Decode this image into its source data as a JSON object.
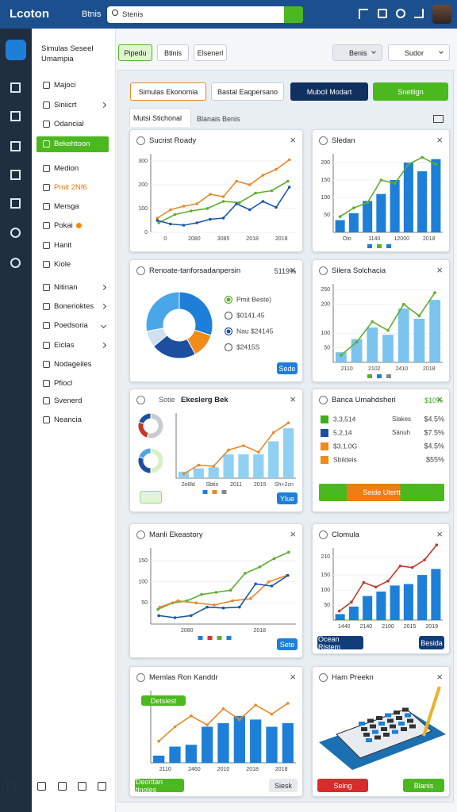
{
  "topbar": {
    "logo": "Lcoton",
    "nav": "Btnis",
    "search": "Stenis"
  },
  "header": {
    "title_line1": "Simulas Seseel",
    "title_line2": "Umampia",
    "buttons": [
      "Pipedu",
      "Btinis",
      "Elsenerl"
    ],
    "dropdowns": [
      "Benis",
      "Sudor"
    ]
  },
  "sidebar": [
    {
      "label": "Majoci"
    },
    {
      "label": "Siniicrt",
      "chevron": "right"
    },
    {
      "label": "Odancial"
    },
    {
      "label": "Bekehtoon",
      "active": true
    },
    {
      "label": "Medion"
    },
    {
      "label": "Pmit 2Nf6",
      "color": "#e07a10"
    },
    {
      "label": "Mersga"
    },
    {
      "label": "Pokai",
      "badge_color": "#f08c00"
    },
    {
      "label": "Hanit"
    },
    {
      "label": "Kiole"
    },
    {
      "label": "Nitinan",
      "chevron": "right"
    },
    {
      "label": "Bonerioktes",
      "chevron": "right"
    },
    {
      "label": "Poedsoria",
      "chevron": "down"
    },
    {
      "label": "Eiclas",
      "chevron": "right"
    },
    {
      "label": "Nodageiles"
    },
    {
      "label": "Pfiocl"
    },
    {
      "label": "Svenerd"
    },
    {
      "label": "Neancia"
    }
  ],
  "tabs": [
    "Simulas Ekonomia",
    "Bastal Eaqpersano",
    "Mubcil Modart",
    "Snetlign"
  ],
  "subtabs": [
    "Mutsi Stichonal",
    "Blanais Benis"
  ],
  "cards": [
    {
      "title": "Sucrist Roady",
      "chart": {
        "yticks": [
          0,
          100,
          200,
          300
        ],
        "ylim": [
          0,
          330
        ],
        "xlabels": [
          "0",
          "2080",
          "3085",
          "2018",
          "2018"
        ],
        "series": [
          {
            "type": "line",
            "color": "#e8892a",
            "values": [
              60,
              95,
              110,
              120,
              160,
              150,
              215,
              200,
              240,
              265,
              305
            ]
          },
          {
            "type": "line",
            "color": "#5fae2e",
            "values": [
              40,
              75,
              90,
              100,
              130,
              125,
              165,
              175,
              215
            ]
          },
          {
            "type": "line",
            "color": "#1c56a6",
            "values": [
              50,
              35,
              30,
              40,
              55,
              60,
              120,
              95,
              130,
              105,
              190
            ]
          }
        ]
      }
    },
    {
      "title": "Sledan",
      "chart": {
        "yticks": [
          50,
          100,
          150,
          200
        ],
        "ylim": [
          0,
          225
        ],
        "xlabels": [
          "Olo",
          "1140",
          "12000",
          "2018"
        ],
        "legend_colors": [
          "#1d7fd8",
          "#5fae2e",
          "#1d7fd8"
        ],
        "series": [
          {
            "type": "bar",
            "color": "#1d7fd8",
            "values": [
              35,
              55,
              90,
              110,
              150,
              200,
              175,
              210
            ]
          },
          {
            "type": "line",
            "color": "#5fae2e",
            "values": [
              45,
              70,
              85,
              150,
              140,
              195,
              215,
              195
            ]
          }
        ]
      }
    },
    {
      "title": "Renoate-tanforsadanpersin",
      "badge": "5119%",
      "donut": {
        "values": [
          30,
          12,
          22,
          8,
          28
        ],
        "colors": [
          "#1d7fd8",
          "#f08c1a",
          "#1c4fa0",
          "#cfe0f0",
          "#49a6e8"
        ]
      },
      "legend": [
        {
          "text": "Pmit Beste)",
          "color": "#5fae2e",
          "checked": true
        },
        {
          "text": "$0141.45",
          "color": "#3f9f1a"
        },
        {
          "text": "Nau $24145",
          "color": "#1c4fa0",
          "checked": true
        },
        {
          "text": "$2415S",
          "color": "#e07a10"
        }
      ],
      "button": "Sede"
    },
    {
      "title": "Silera Solchacia",
      "chart": {
        "yticks": [
          50,
          100,
          200,
          250
        ],
        "ylim": [
          0,
          270
        ],
        "xlabels": [
          "2110",
          "2102",
          "2410",
          "2018"
        ],
        "legend_colors": [
          "#5fae2e",
          "#1d7fd8",
          "#888888"
        ],
        "series": [
          {
            "type": "bar",
            "color": "#7cc3ee",
            "values": [
              35,
              80,
              120,
              95,
              185,
              150,
              215
            ]
          },
          {
            "type": "line",
            "color": "#5fae2e",
            "values": [
              25,
              70,
              140,
              110,
              200,
              160,
              240
            ]
          }
        ]
      }
    },
    {
      "title": "Ekeslerg Bek",
      "prefix": "Sotie",
      "button": "Ylue",
      "mini_donuts": [
        {
          "values": [
            55,
            25,
            20
          ],
          "colors": [
            "#c9ccd2",
            "#c0392b",
            "#1c4fa0"
          ]
        },
        {
          "values": [
            50,
            30,
            20
          ],
          "colors": [
            "#d8f0c8",
            "#1c4fa0",
            "#49a6e8"
          ]
        }
      ],
      "chart": {
        "yticks": [],
        "ylim": [
          0,
          300
        ],
        "xlabels": [
          "2e8ld",
          "Sbtis",
          "2011",
          "2015",
          "Sh+2cn"
        ],
        "legend_colors": [
          "#1d7fd8",
          "#e8892a",
          "#888888"
        ],
        "series": [
          {
            "type": "bar",
            "color": "#8fd0f3",
            "values": [
              30,
              45,
              50,
              110,
              110,
              110,
              170,
              230
            ]
          },
          {
            "type": "line",
            "color": "#e8892a",
            "values": [
              20,
              60,
              55,
              130,
              150,
              120,
              210,
              255
            ]
          }
        ]
      }
    },
    {
      "title": "Banca Umahdsheri",
      "badge": "$10%",
      "button": "Seide Utertt",
      "rows": [
        {
          "value": "3,3,514",
          "label": "Slakes",
          "pct": "$4.5%",
          "color": "#3fae1a"
        },
        {
          "value": "5,2,14",
          "label": "Sänuh",
          "pct": "$7.5%",
          "color": "#1c4fa0"
        },
        {
          "value": "$3.1.0G",
          "label": "",
          "pct": "$4.5%",
          "color": "#f08c1a"
        },
        {
          "value": "Sbildeis",
          "label": "",
          "pct": "$55%",
          "color": "#f08c1a"
        }
      ]
    },
    {
      "title": "Manli Ekeastory",
      "button": "Sete",
      "chart": {
        "yticks": [
          50,
          100,
          150
        ],
        "ylim": [
          0,
          180
        ],
        "xlabels": [
          "2080",
          "2018"
        ],
        "legend_colors": [
          "#1d7fd8",
          "#d33",
          "#5fae2e",
          "#1d7fd8"
        ],
        "series": [
          {
            "type": "line",
            "color": "#5fae2e",
            "values": [
              35,
              50,
              55,
              70,
              75,
              80,
              120,
              135,
              155,
              170
            ]
          },
          {
            "type": "line",
            "color": "#e8892a",
            "values": [
              40,
              55,
              50,
              45,
              55,
              60,
              100,
              115
            ]
          },
          {
            "type": "line",
            "color": "#1c56a6",
            "values": [
              20,
              15,
              20,
              40,
              38,
              40,
              95,
              90,
              115
            ]
          }
        ]
      }
    },
    {
      "title": "Clomula",
      "buttons": [
        "Ocean Rlstem",
        "Besida"
      ],
      "chart": {
        "yticks": [
          50,
          100,
          150,
          210
        ],
        "ylim": [
          0,
          240
        ],
        "xlabels": [
          "1440",
          "2140",
          "2100",
          "2015",
          "2019"
        ],
        "series": [
          {
            "type": "bar",
            "color": "#1d7fd8",
            "values": [
              20,
              45,
              80,
              95,
              115,
              120,
              150,
              170
            ]
          },
          {
            "type": "line",
            "color": "#c0392b",
            "values": [
              30,
              60,
              125,
              110,
              130,
              180,
              175,
              200,
              250
            ]
          }
        ]
      }
    },
    {
      "title": "Memlas Ron Kanddr",
      "tag": "Detsiest",
      "buttons": [
        "Deoritan tinoles",
        "Siesk"
      ],
      "chart": {
        "yticks": [],
        "ylim": [
          0,
          200
        ],
        "xlabels": [
          "2110",
          "2460",
          "2010",
          "2018",
          "2018"
        ],
        "series": [
          {
            "type": "bar",
            "color": "#1d7fd8",
            "values": [
              20,
              45,
              50,
              100,
              110,
              130,
              120,
              100,
              110
            ]
          },
          {
            "type": "line",
            "color": "#e8892a",
            "values": [
              60,
              100,
              130,
              105,
              150,
              120,
              160,
              135,
              165
            ]
          }
        ]
      }
    },
    {
      "title": "Ham Preekn",
      "illustration": true,
      "buttons": [
        "Seing",
        "Blanis"
      ]
    }
  ]
}
